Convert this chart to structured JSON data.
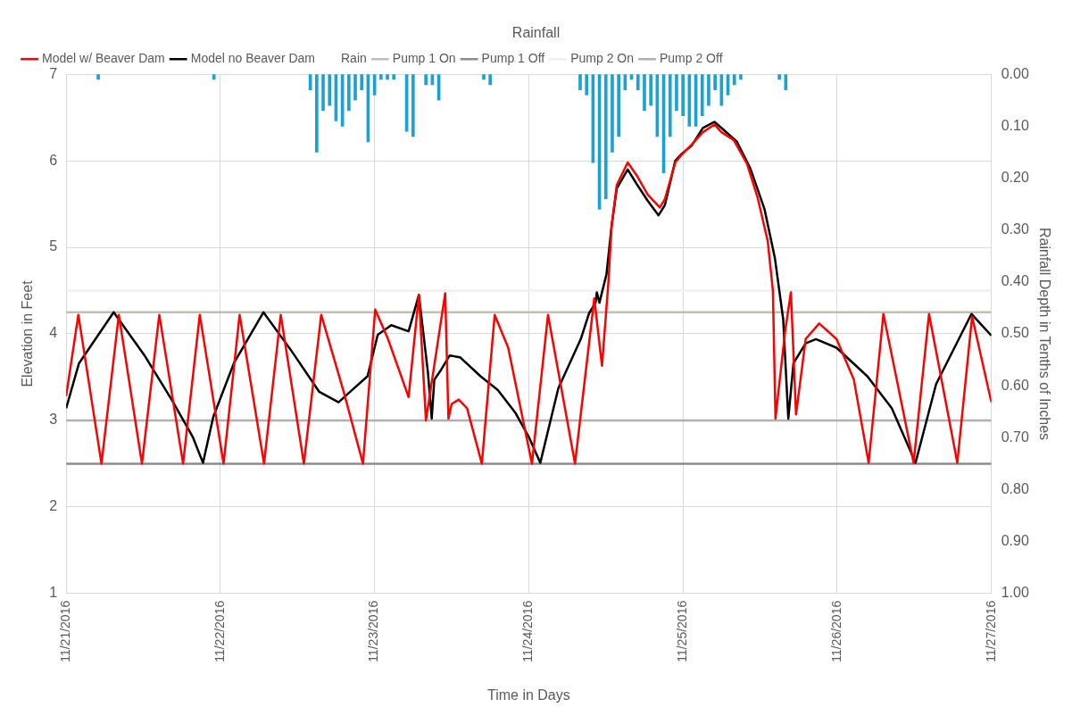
{
  "chart_data": {
    "type": "line",
    "title": "Rainfall",
    "xlabel": "Time in Days",
    "ylabel": "Elevation in Feet",
    "y2label": "Rainfall Depth in Tenths of Inches",
    "xlim": [
      "2016-11-21",
      "2016-11-27"
    ],
    "xticks": [
      {
        "value": "2016-11-21",
        "label": "11/21/2016"
      },
      {
        "value": "2016-11-22",
        "label": "11/22/2016"
      },
      {
        "value": "2016-11-23",
        "label": "11/23/2016"
      },
      {
        "value": "2016-11-24",
        "label": "11/24/2016"
      },
      {
        "value": "2016-11-25",
        "label": "11/25/2016"
      },
      {
        "value": "2016-11-26",
        "label": "11/26/2016"
      },
      {
        "value": "2016-11-27",
        "label": "11/27/2016"
      }
    ],
    "ylim": [
      1,
      7
    ],
    "yticks": [
      1,
      2,
      3,
      4,
      5,
      6,
      7
    ],
    "y2lim": [
      1,
      0
    ],
    "y2ticks": [
      {
        "value": 0,
        "label": "0.00"
      },
      {
        "value": 0.1,
        "label": "0.10"
      },
      {
        "value": 0.2,
        "label": "0.20"
      },
      {
        "value": 0.3,
        "label": "0.30"
      },
      {
        "value": 0.4,
        "label": "0.40"
      },
      {
        "value": 0.5,
        "label": "0.50"
      },
      {
        "value": 0.6,
        "label": "0.60"
      },
      {
        "value": 0.7,
        "label": "0.70"
      },
      {
        "value": 0.8,
        "label": "0.80"
      },
      {
        "value": 0.9,
        "label": "0.90"
      },
      {
        "value": 1,
        "label": "1.00"
      }
    ],
    "grid": true,
    "legend": "top",
    "marker": "none",
    "line_style": "solid",
    "series": [
      {
        "name": "Model w/ Beaver Dam",
        "color": "#ff0000",
        "x": [
          "2016-11-21T00:00",
          "2016-11-21T01:54",
          "2016-11-21T05:30",
          "2016-11-21T08:12",
          "2016-11-21T11:48",
          "2016-11-21T14:30",
          "2016-11-21T18:12",
          "2016-11-21T20:48",
          "2016-11-22T00:30",
          "2016-11-22T03:00",
          "2016-11-22T06:48",
          "2016-11-22T09:24",
          "2016-11-22T13:00",
          "2016-11-22T15:42",
          "2016-11-22T19:12",
          "2016-11-22T22:12",
          "2016-11-23T00:06",
          "2016-11-23T02:06",
          "2016-11-23T05:18",
          "2016-11-23T06:54",
          "2016-11-23T08:00",
          "2016-11-23T11:00",
          "2016-11-23T11:30",
          "2016-11-23T12:00",
          "2016-11-23T13:06",
          "2016-11-23T14:24",
          "2016-11-23T16:42",
          "2016-11-23T18:42",
          "2016-11-23T20:48",
          "2016-11-24T00:30",
          "2016-11-24T03:00",
          "2016-11-24T07:12",
          "2016-11-24T10:12",
          "2016-11-24T11:24",
          "2016-11-24T12:24",
          "2016-11-24T12:54",
          "2016-11-24T13:42",
          "2016-11-24T15:24",
          "2016-11-24T16:54",
          "2016-11-24T18:30",
          "2016-11-24T20:24",
          "2016-11-24T21:12",
          "2016-11-24T22:48",
          "2016-11-24T23:48",
          "2016-11-25T01:24",
          "2016-11-25T03:06",
          "2016-11-25T04:54",
          "2016-11-25T06:00",
          "2016-11-25T07:54",
          "2016-11-25T10:00",
          "2016-11-25T11:36",
          "2016-11-25T13:12",
          "2016-11-25T14:00",
          "2016-11-25T14:24",
          "2016-11-25T15:54",
          "2016-11-25T16:48",
          "2016-11-25T17:36",
          "2016-11-25T19:06",
          "2016-11-25T21:12",
          "2016-11-25T23:54",
          "2016-11-26T02:36",
          "2016-11-26T04:54",
          "2016-11-26T07:12",
          "2016-11-26T11:54",
          "2016-11-26T14:18",
          "2016-11-26T18:42",
          "2016-11-26T21:00",
          "2016-11-27T00:00"
        ],
        "values": [
          3.28,
          4.22,
          2.5,
          4.22,
          2.5,
          4.22,
          2.5,
          4.22,
          2.5,
          4.22,
          2.5,
          4.22,
          2.5,
          4.22,
          3.33,
          2.5,
          4.28,
          3.94,
          3.27,
          4.45,
          3.0,
          4.47,
          3.02,
          3.19,
          3.24,
          3.14,
          2.5,
          4.22,
          3.84,
          2.5,
          4.22,
          2.5,
          4.41,
          3.63,
          4.6,
          5.25,
          5.72,
          5.98,
          5.82,
          5.61,
          5.46,
          5.56,
          5.98,
          6.07,
          6.19,
          6.33,
          6.42,
          6.33,
          6.24,
          5.96,
          5.58,
          5.07,
          4.5,
          3.02,
          4.03,
          4.48,
          3.07,
          3.94,
          4.12,
          3.94,
          3.47,
          2.51,
          4.23,
          2.51,
          4.23,
          2.51,
          4.2,
          3.21
        ]
      },
      {
        "name": "Model no Beaver Dam",
        "color": "#000000",
        "x": [
          "2016-11-21T00:00",
          "2016-11-21T02:00",
          "2016-11-21T07:24",
          "2016-11-21T12:12",
          "2016-11-21T16:30",
          "2016-11-21T19:42",
          "2016-11-21T21:18",
          "2016-11-21T22:54",
          "2016-11-22T02:06",
          "2016-11-22T06:42",
          "2016-11-22T11:06",
          "2016-11-22T15:24",
          "2016-11-22T18:24",
          "2016-11-22T20:12",
          "2016-11-22T22:54",
          "2016-11-22T23:24",
          "2016-11-23T00:30",
          "2016-11-23T02:36",
          "2016-11-23T05:18",
          "2016-11-23T06:54",
          "2016-11-23T08:18",
          "2016-11-23T08:54",
          "2016-11-23T09:18",
          "2016-11-23T10:24",
          "2016-11-23T11:42",
          "2016-11-23T13:18",
          "2016-11-23T16:30",
          "2016-11-23T19:12",
          "2016-11-23T21:54",
          "2016-11-24T00:00",
          "2016-11-24T01:48",
          "2016-11-24T04:36",
          "2016-11-24T08:06",
          "2016-11-24T09:24",
          "2016-11-24T10:24",
          "2016-11-24T10:36",
          "2016-11-24T11:00",
          "2016-11-24T12:06",
          "2016-11-24T12:54",
          "2016-11-24T13:42",
          "2016-11-24T15:24",
          "2016-11-24T16:54",
          "2016-11-24T18:30",
          "2016-11-24T20:12",
          "2016-11-24T21:12",
          "2016-11-24T22:48",
          "2016-11-24T23:48",
          "2016-11-25T01:24",
          "2016-11-25T03:06",
          "2016-11-25T04:54",
          "2016-11-25T06:18",
          "2016-11-25T08:24",
          "2016-11-25T10:30",
          "2016-11-25T12:42",
          "2016-11-25T14:18",
          "2016-11-25T15:36",
          "2016-11-25T16:24",
          "2016-11-25T17:12",
          "2016-11-25T19:06",
          "2016-11-25T20:42",
          "2016-11-25T23:54",
          "2016-11-26T04:42",
          "2016-11-26T08:30",
          "2016-11-26T12:12",
          "2016-11-26T15:24",
          "2016-11-26T20:54",
          "2016-11-27T00:00"
        ],
        "values": [
          3.14,
          3.66,
          4.25,
          3.75,
          3.23,
          2.81,
          2.51,
          3.04,
          3.66,
          4.25,
          3.8,
          3.33,
          3.21,
          3.33,
          3.51,
          3.66,
          3.99,
          4.1,
          4.03,
          4.45,
          3.56,
          3.02,
          3.47,
          3.59,
          3.75,
          3.73,
          3.51,
          3.35,
          3.09,
          2.81,
          2.51,
          3.37,
          3.94,
          4.24,
          4.36,
          4.48,
          4.36,
          4.69,
          5.25,
          5.68,
          5.9,
          5.72,
          5.54,
          5.37,
          5.49,
          6.0,
          6.08,
          6.18,
          6.38,
          6.45,
          6.36,
          6.22,
          5.91,
          5.44,
          4.88,
          4.17,
          3.02,
          3.66,
          3.89,
          3.94,
          3.84,
          3.51,
          3.14,
          2.51,
          3.42,
          4.23,
          3.98
        ]
      },
      {
        "name": "Rain",
        "type": "bar",
        "axis": "y2",
        "color": "#1ba1d6",
        "x": [
          "2016-11-21T05:00",
          "2016-11-21T23:00",
          "2016-11-22T14:00",
          "2016-11-22T15:00",
          "2016-11-22T16:00",
          "2016-11-22T17:00",
          "2016-11-22T18:00",
          "2016-11-22T19:00",
          "2016-11-22T20:00",
          "2016-11-22T21:00",
          "2016-11-22T22:00",
          "2016-11-22T23:00",
          "2016-11-23T00:00",
          "2016-11-23T01:00",
          "2016-11-23T02:00",
          "2016-11-23T03:00",
          "2016-11-23T05:00",
          "2016-11-23T06:00",
          "2016-11-23T08:00",
          "2016-11-23T09:00",
          "2016-11-23T10:00",
          "2016-11-23T17:00",
          "2016-11-23T18:00",
          "2016-11-24T08:00",
          "2016-11-24T09:00",
          "2016-11-24T10:00",
          "2016-11-24T11:00",
          "2016-11-24T12:00",
          "2016-11-24T13:00",
          "2016-11-24T14:00",
          "2016-11-24T15:00",
          "2016-11-24T16:00",
          "2016-11-24T17:00",
          "2016-11-24T18:00",
          "2016-11-24T19:00",
          "2016-11-24T20:00",
          "2016-11-24T21:00",
          "2016-11-24T22:00",
          "2016-11-24T23:00",
          "2016-11-25T00:00",
          "2016-11-25T01:00",
          "2016-11-25T02:00",
          "2016-11-25T03:00",
          "2016-11-25T04:00",
          "2016-11-25T05:00",
          "2016-11-25T06:00",
          "2016-11-25T07:00",
          "2016-11-25T08:00",
          "2016-11-25T09:00",
          "2016-11-25T15:00",
          "2016-11-25T16:00"
        ],
        "values": [
          0.01,
          0.01,
          0.03,
          0.15,
          0.07,
          0.06,
          0.09,
          0.1,
          0.07,
          0.05,
          0.03,
          0.13,
          0.04,
          0.01,
          0.01,
          0.01,
          0.11,
          0.12,
          0.02,
          0.02,
          0.05,
          0.01,
          0.02,
          0.03,
          0.04,
          0.17,
          0.26,
          0.24,
          0.15,
          0.12,
          0.03,
          0.01,
          0.03,
          0.07,
          0.06,
          0.12,
          0.19,
          0.12,
          0.07,
          0.08,
          0.1,
          0.1,
          0.08,
          0.06,
          0.03,
          0.06,
          0.04,
          0.02,
          0.01,
          0.01,
          0.03
        ]
      },
      {
        "name": "Pump 1 On",
        "color": "#bfbfb4",
        "x": [
          "2016-11-21",
          "2016-11-27"
        ],
        "values": [
          4.25,
          4.25
        ]
      },
      {
        "name": "Pump 1 Off",
        "color": "#8c8c8c",
        "x": [
          "2016-11-21",
          "2016-11-27"
        ],
        "values": [
          2.5,
          2.5
        ]
      },
      {
        "name": "Pump 2 On",
        "color": "#f0f0f0",
        "x": [
          "2016-11-21",
          "2016-11-27"
        ],
        "values": [
          4.5,
          4.5
        ]
      },
      {
        "name": "Pump 2 Off",
        "color": "#b0b0b0",
        "x": [
          "2016-11-21",
          "2016-11-27"
        ],
        "values": [
          3.0,
          3.0
        ]
      }
    ]
  }
}
